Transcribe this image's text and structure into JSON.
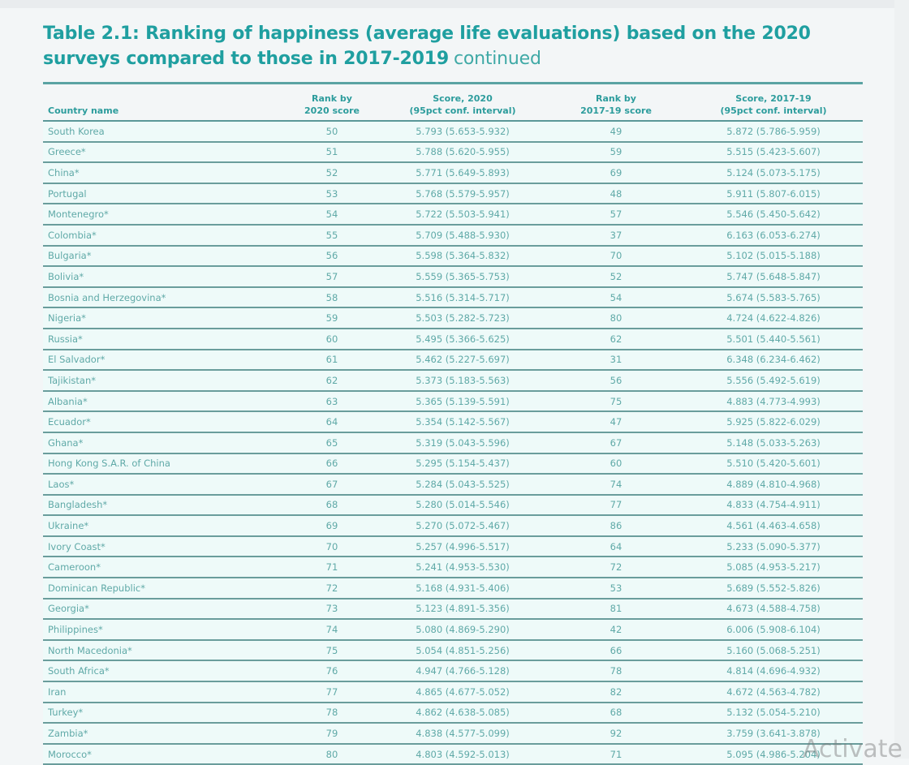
{
  "title": {
    "main": "Table 2.1: Ranking of happiness (average life evaluations) based on the 2020 surveys compared to those in 2017-2019",
    "suffix": "continued"
  },
  "table": {
    "headers": {
      "country": "Country name",
      "rank2020_line1": "Rank by",
      "rank2020_line2": "2020 score",
      "score2020_line1": "Score, 2020",
      "score2020_line2": "(95pct conf. interval)",
      "rank1719_line1": "Rank by",
      "rank1719_line2": "2017-19 score",
      "score1719_line1": "Score, 2017-19",
      "score1719_line2": "(95pct conf. interval)"
    },
    "rows": [
      {
        "country": "South Korea",
        "rank2020": "50",
        "score2020": "5.793 (5.653-5.932)",
        "rank1719": "49",
        "score1719": "5.872 (5.786-5.959)"
      },
      {
        "country": "Greece*",
        "rank2020": "51",
        "score2020": "5.788 (5.620-5.955)",
        "rank1719": "59",
        "score1719": "5.515 (5.423-5.607)"
      },
      {
        "country": "China*",
        "rank2020": "52",
        "score2020": "5.771 (5.649-5.893)",
        "rank1719": "69",
        "score1719": "5.124 (5.073-5.175)"
      },
      {
        "country": "Portugal",
        "rank2020": "53",
        "score2020": "5.768 (5.579-5.957)",
        "rank1719": "48",
        "score1719": "5.911 (5.807-6.015)"
      },
      {
        "country": "Montenegro*",
        "rank2020": "54",
        "score2020": "5.722 (5.503-5.941)",
        "rank1719": "57",
        "score1719": "5.546 (5.450-5.642)"
      },
      {
        "country": "Colombia*",
        "rank2020": "55",
        "score2020": "5.709 (5.488-5.930)",
        "rank1719": "37",
        "score1719": "6.163 (6.053-6.274)"
      },
      {
        "country": "Bulgaria*",
        "rank2020": "56",
        "score2020": "5.598 (5.364-5.832)",
        "rank1719": "70",
        "score1719": "5.102 (5.015-5.188)"
      },
      {
        "country": "Bolivia*",
        "rank2020": "57",
        "score2020": "5.559 (5.365-5.753)",
        "rank1719": "52",
        "score1719": "5.747 (5.648-5.847)"
      },
      {
        "country": "Bosnia and Herzegovina*",
        "rank2020": "58",
        "score2020": "5.516 (5.314-5.717)",
        "rank1719": "54",
        "score1719": "5.674 (5.583-5.765)"
      },
      {
        "country": "Nigeria*",
        "rank2020": "59",
        "score2020": "5.503 (5.282-5.723)",
        "rank1719": "80",
        "score1719": "4.724 (4.622-4.826)"
      },
      {
        "country": "Russia*",
        "rank2020": "60",
        "score2020": "5.495 (5.366-5.625)",
        "rank1719": "62",
        "score1719": "5.501 (5.440-5.561)"
      },
      {
        "country": "El Salvador*",
        "rank2020": "61",
        "score2020": "5.462 (5.227-5.697)",
        "rank1719": "31",
        "score1719": "6.348 (6.234-6.462)"
      },
      {
        "country": "Tajikistan*",
        "rank2020": "62",
        "score2020": "5.373 (5.183-5.563)",
        "rank1719": "56",
        "score1719": "5.556 (5.492-5.619)"
      },
      {
        "country": "Albania*",
        "rank2020": "63",
        "score2020": "5.365 (5.139-5.591)",
        "rank1719": "75",
        "score1719": "4.883 (4.773-4.993)"
      },
      {
        "country": "Ecuador*",
        "rank2020": "64",
        "score2020": "5.354 (5.142-5.567)",
        "rank1719": "47",
        "score1719": "5.925 (5.822-6.029)"
      },
      {
        "country": "Ghana*",
        "rank2020": "65",
        "score2020": "5.319 (5.043-5.596)",
        "rank1719": "67",
        "score1719": "5.148 (5.033-5.263)"
      },
      {
        "country": "Hong Kong S.A.R. of China",
        "rank2020": "66",
        "score2020": "5.295 (5.154-5.437)",
        "rank1719": "60",
        "score1719": "5.510 (5.420-5.601)"
      },
      {
        "country": "Laos*",
        "rank2020": "67",
        "score2020": "5.284 (5.043-5.525)",
        "rank1719": "74",
        "score1719": "4.889 (4.810-4.968)"
      },
      {
        "country": "Bangladesh*",
        "rank2020": "68",
        "score2020": "5.280 (5.014-5.546)",
        "rank1719": "77",
        "score1719": "4.833 (4.754-4.911)"
      },
      {
        "country": "Ukraine*",
        "rank2020": "69",
        "score2020": "5.270 (5.072-5.467)",
        "rank1719": "86",
        "score1719": "4.561 (4.463-4.658)"
      },
      {
        "country": "Ivory Coast*",
        "rank2020": "70",
        "score2020": "5.257 (4.996-5.517)",
        "rank1719": "64",
        "score1719": "5.233 (5.090-5.377)"
      },
      {
        "country": "Cameroon*",
        "rank2020": "71",
        "score2020": "5.241 (4.953-5.530)",
        "rank1719": "72",
        "score1719": "5.085 (4.953-5.217)"
      },
      {
        "country": "Dominican Republic*",
        "rank2020": "72",
        "score2020": "5.168 (4.931-5.406)",
        "rank1719": "53",
        "score1719": "5.689 (5.552-5.826)"
      },
      {
        "country": "Georgia*",
        "rank2020": "73",
        "score2020": "5.123 (4.891-5.356)",
        "rank1719": "81",
        "score1719": "4.673 (4.588-4.758)"
      },
      {
        "country": "Philippines*",
        "rank2020": "74",
        "score2020": "5.080 (4.869-5.290)",
        "rank1719": "42",
        "score1719": "6.006 (5.908-6.104)"
      },
      {
        "country": "North Macedonia*",
        "rank2020": "75",
        "score2020": "5.054 (4.851-5.256)",
        "rank1719": "66",
        "score1719": "5.160 (5.068-5.251)"
      },
      {
        "country": "South Africa*",
        "rank2020": "76",
        "score2020": "4.947 (4.766-5.128)",
        "rank1719": "78",
        "score1719": "4.814 (4.696-4.932)"
      },
      {
        "country": "Iran",
        "rank2020": "77",
        "score2020": "4.865 (4.677-5.052)",
        "rank1719": "82",
        "score1719": "4.672 (4.563-4.782)"
      },
      {
        "country": "Turkey*",
        "rank2020": "78",
        "score2020": "4.862 (4.638-5.085)",
        "rank1719": "68",
        "score1719": "5.132 (5.054-5.210)"
      },
      {
        "country": "Zambia*",
        "rank2020": "79",
        "score2020": "4.838 (4.577-5.099)",
        "rank1719": "92",
        "score1719": "3.759 (3.641-3.878)"
      },
      {
        "country": "Morocco*",
        "rank2020": "80",
        "score2020": "4.803 (4.592-5.013)",
        "rank1719": "71",
        "score1719": "5.095 (4.986-5.204)"
      }
    ]
  },
  "overlay": {
    "watermark": "Activate"
  }
}
